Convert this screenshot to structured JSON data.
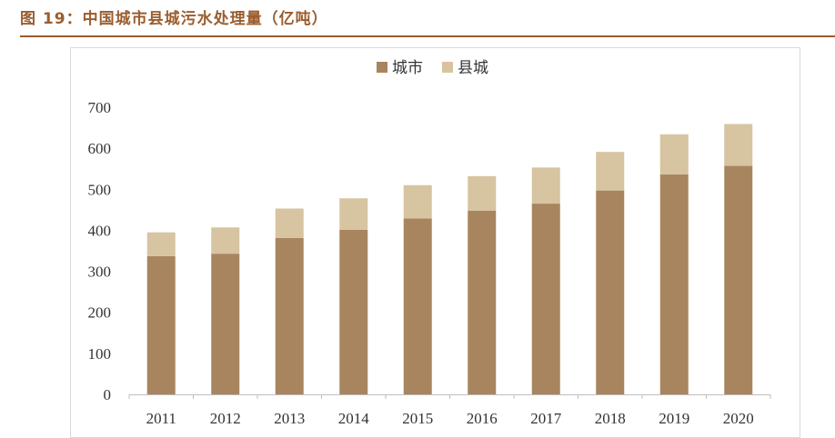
{
  "figure": {
    "title": "图 19：中国城市县城污水处理量（亿吨）"
  },
  "colors": {
    "accent": "#9a5d2e",
    "city": "#a8855e",
    "county": "#d7c4a0",
    "axis": "#bfbfbf"
  },
  "chart_data": {
    "type": "bar",
    "stacked": true,
    "title": "",
    "xlabel": "",
    "ylabel": "",
    "categories": [
      "2011",
      "2012",
      "2013",
      "2014",
      "2015",
      "2016",
      "2017",
      "2018",
      "2019",
      "2020"
    ],
    "series": [
      {
        "name": "城市",
        "values": [
          337,
          343,
          381,
          401,
          429,
          448,
          465,
          497,
          536,
          557
        ]
      },
      {
        "name": "县城",
        "values": [
          58,
          64,
          72,
          77,
          81,
          84,
          88,
          94,
          98,
          102
        ]
      }
    ],
    "ylim": [
      0,
      700
    ],
    "yticks": [
      "0",
      "100",
      "200",
      "300",
      "400",
      "500",
      "600",
      "700"
    ],
    "grid": false,
    "legend": "top-center"
  }
}
